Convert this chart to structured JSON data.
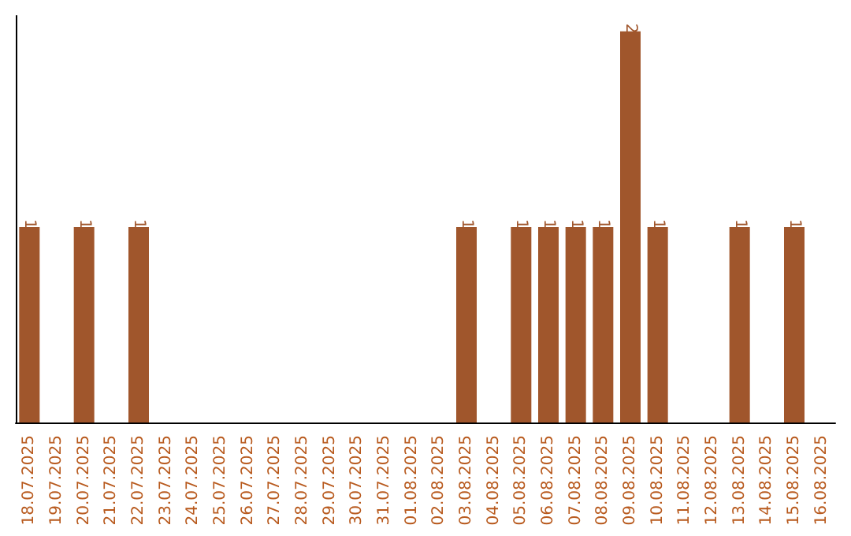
{
  "chart_data": {
    "type": "bar",
    "categories": [
      "18.07.2025",
      "19.07.2025",
      "20.07.2025",
      "21.07.2025",
      "22.07.2025",
      "23.07.2025",
      "24.07.2025",
      "25.07.2025",
      "26.07.2025",
      "27.07.2025",
      "28.07.2025",
      "29.07.2025",
      "30.07.2025",
      "31.07.2025",
      "01.08.2025",
      "02.08.2025",
      "03.08.2025",
      "04.08.2025",
      "05.08.2025",
      "06.08.2025",
      "07.08.2025",
      "08.08.2025",
      "09.08.2025",
      "10.08.2025",
      "11.08.2025",
      "12.08.2025",
      "13.08.2025",
      "14.08.2025",
      "15.08.2025",
      "16.08.2025"
    ],
    "values": [
      1,
      0,
      1,
      0,
      1,
      0,
      0,
      0,
      0,
      0,
      0,
      0,
      0,
      0,
      0,
      0,
      1,
      0,
      1,
      1,
      1,
      1,
      2,
      1,
      0,
      0,
      1,
      0,
      1,
      0
    ],
    "value_labels": [
      "1",
      null,
      "1",
      null,
      "1",
      null,
      null,
      null,
      null,
      null,
      null,
      null,
      null,
      null,
      null,
      null,
      "1",
      null,
      "1",
      "1",
      "1",
      "1",
      "2",
      "1",
      null,
      null,
      "1",
      null,
      "1",
      null
    ],
    "color": "#a0562c",
    "tick_labels": "x"
  }
}
